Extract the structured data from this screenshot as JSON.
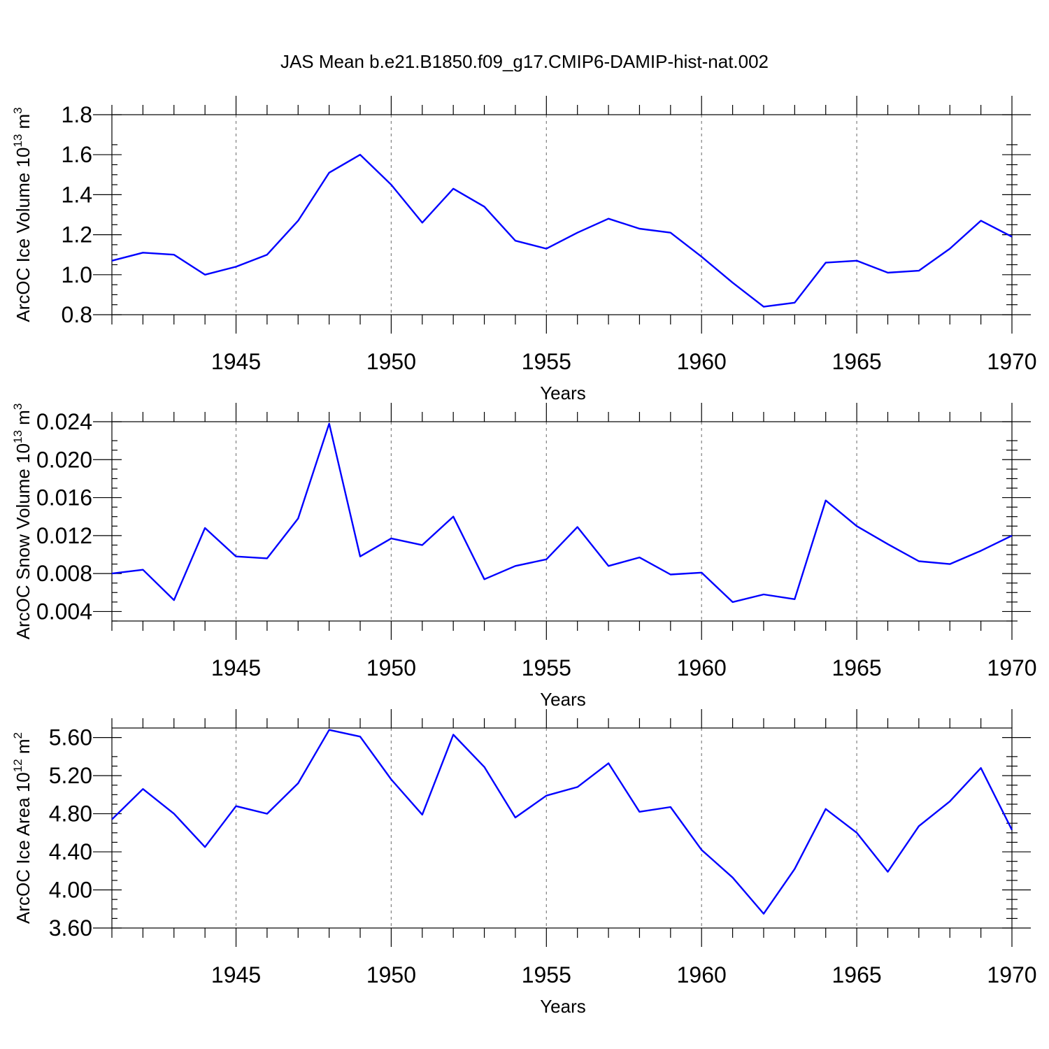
{
  "figure_title": "JAS Mean b.e21.B1850.f09_g17.CMIP6-DAMIP-hist-nat.002",
  "series_color": "#0000ff",
  "chart_data": [
    {
      "type": "line",
      "xlabel": "Years",
      "ylabel": "ArcOC Ice Volume 10",
      "ylabel_sup": "13",
      "ylabel_unit": " m",
      "ylabel_unit_sup": "3",
      "xlim": [
        1941,
        1970
      ],
      "ylim": [
        0.8,
        1.8
      ],
      "x_ticks": [
        1945,
        1950,
        1955,
        1960,
        1965,
        1970
      ],
      "y_ticks": [
        0.8,
        1.0,
        1.2,
        1.4,
        1.6,
        1.8
      ],
      "y_tick_labels": [
        "0.8",
        "1.0",
        "1.2",
        "1.4",
        "1.6",
        "1.8"
      ],
      "grid": "dashed vertical at major x ticks",
      "x": [
        1941,
        1942,
        1943,
        1944,
        1945,
        1946,
        1947,
        1948,
        1949,
        1950,
        1951,
        1952,
        1953,
        1954,
        1955,
        1956,
        1957,
        1958,
        1959,
        1960,
        1961,
        1962,
        1963,
        1964,
        1965,
        1966,
        1967,
        1968,
        1969,
        1970
      ],
      "values": [
        1.07,
        1.11,
        1.1,
        1.0,
        1.04,
        1.1,
        1.27,
        1.51,
        1.6,
        1.45,
        1.26,
        1.43,
        1.34,
        1.17,
        1.13,
        1.21,
        1.28,
        1.23,
        1.21,
        1.09,
        0.96,
        0.84,
        0.86,
        1.06,
        1.07,
        1.01,
        1.02,
        1.13,
        1.27,
        1.19
      ]
    },
    {
      "type": "line",
      "xlabel": "Years",
      "ylabel": "ArcOC Snow Volume 10",
      "ylabel_sup": "13",
      "ylabel_unit": " m",
      "ylabel_unit_sup": "3",
      "xlim": [
        1941,
        1970
      ],
      "ylim": [
        0.003,
        0.024
      ],
      "x_ticks": [
        1945,
        1950,
        1955,
        1960,
        1965,
        1970
      ],
      "y_ticks": [
        0.004,
        0.008,
        0.012,
        0.016,
        0.02,
        0.024
      ],
      "y_tick_labels": [
        "0.004",
        "0.008",
        "0.012",
        "0.016",
        "0.020",
        "0.024"
      ],
      "grid": "dashed vertical at major x ticks",
      "x": [
        1941,
        1942,
        1943,
        1944,
        1945,
        1946,
        1947,
        1948,
        1949,
        1950,
        1951,
        1952,
        1953,
        1954,
        1955,
        1956,
        1957,
        1958,
        1959,
        1960,
        1961,
        1962,
        1963,
        1964,
        1965,
        1966,
        1967,
        1968,
        1969,
        1970
      ],
      "values": [
        0.008,
        0.0084,
        0.0052,
        0.0128,
        0.0098,
        0.0096,
        0.0138,
        0.0238,
        0.0098,
        0.0117,
        0.011,
        0.014,
        0.0074,
        0.0088,
        0.0095,
        0.0129,
        0.0088,
        0.0097,
        0.0079,
        0.0081,
        0.005,
        0.0058,
        0.0053,
        0.0157,
        0.013,
        0.0111,
        0.0093,
        0.009,
        0.0104,
        0.012
      ]
    },
    {
      "type": "line",
      "xlabel": "Years",
      "ylabel": "ArcOC Ice Area 10",
      "ylabel_sup": "12",
      "ylabel_unit": " m",
      "ylabel_unit_sup": "2",
      "xlim": [
        1941,
        1970
      ],
      "ylim": [
        3.6,
        5.7
      ],
      "x_ticks": [
        1945,
        1950,
        1955,
        1960,
        1965,
        1970
      ],
      "y_ticks": [
        3.6,
        4.0,
        4.4,
        4.8,
        5.2,
        5.6
      ],
      "y_tick_labels": [
        "3.60",
        "4.00",
        "4.40",
        "4.80",
        "5.20",
        "5.60"
      ],
      "grid": "dashed vertical at major x ticks",
      "x": [
        1941,
        1942,
        1943,
        1944,
        1945,
        1946,
        1947,
        1948,
        1949,
        1950,
        1951,
        1952,
        1953,
        1954,
        1955,
        1956,
        1957,
        1958,
        1959,
        1960,
        1961,
        1962,
        1963,
        1964,
        1965,
        1966,
        1967,
        1968,
        1969,
        1970
      ],
      "values": [
        4.74,
        5.06,
        4.8,
        4.45,
        4.88,
        4.8,
        5.12,
        5.68,
        5.61,
        5.16,
        4.79,
        5.63,
        5.29,
        4.76,
        4.99,
        5.08,
        5.33,
        4.82,
        4.87,
        4.42,
        4.13,
        3.75,
        4.22,
        4.85,
        4.6,
        4.19,
        4.67,
        4.93,
        5.28,
        4.63
      ]
    }
  ]
}
